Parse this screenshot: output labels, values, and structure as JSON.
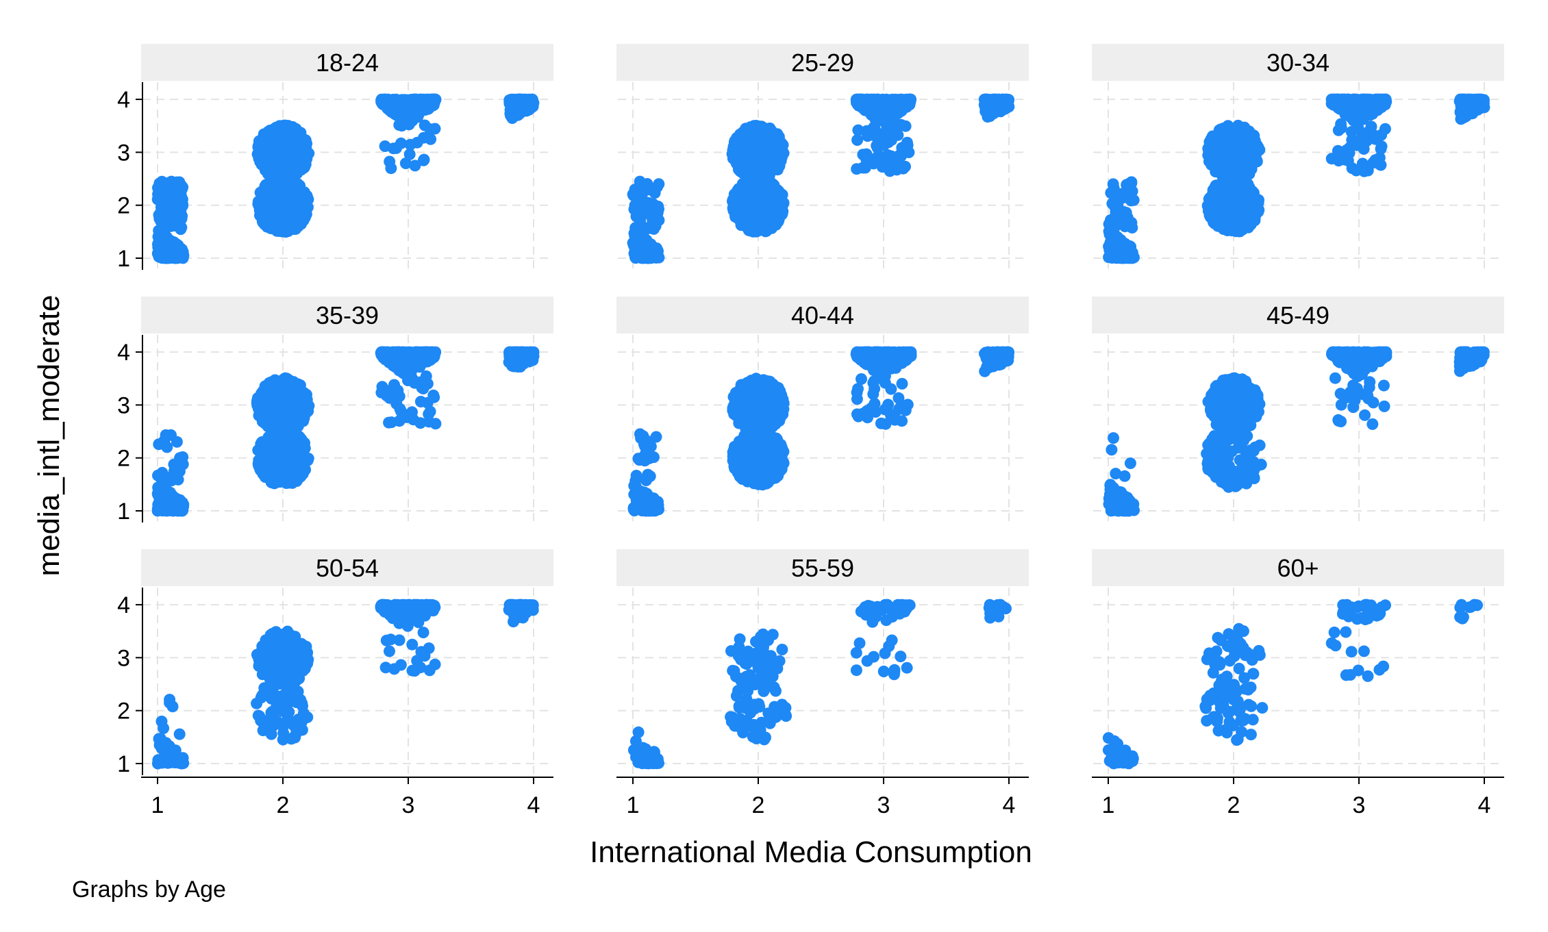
{
  "chart_data": {
    "type": "scatter",
    "jittered": true,
    "xlabel": "International Media Consumption",
    "ylabel": "media_intl_moderate",
    "note": "Graphs by Age",
    "xlim": [
      1,
      4
    ],
    "ylim": [
      1,
      4
    ],
    "xticks": [
      "1",
      "2",
      "3",
      "4"
    ],
    "yticks": [
      "1",
      "2",
      "3",
      "4"
    ],
    "grid": true,
    "marker_color": "#1E88F5",
    "strip_color": "#EEEEEE",
    "grid_color": "#E3E3E3",
    "panels": [
      {
        "label": "18-24",
        "cells": [
          {
            "x": 1,
            "y": 1,
            "n": 180
          },
          {
            "x": 1,
            "y": 2,
            "n": 110
          },
          {
            "x": 2,
            "y": 2,
            "n": 400
          },
          {
            "x": 2,
            "y": 3,
            "n": 420
          },
          {
            "x": 3,
            "y": 3,
            "n": 20
          },
          {
            "x": 3,
            "y": 4,
            "n": 300
          },
          {
            "x": 4,
            "y": 4,
            "n": 120
          }
        ]
      },
      {
        "label": "25-29",
        "cells": [
          {
            "x": 1,
            "y": 1,
            "n": 140
          },
          {
            "x": 1,
            "y": 2,
            "n": 60
          },
          {
            "x": 2,
            "y": 2,
            "n": 400
          },
          {
            "x": 2,
            "y": 3,
            "n": 420
          },
          {
            "x": 3,
            "y": 3,
            "n": 60
          },
          {
            "x": 3,
            "y": 4,
            "n": 300
          },
          {
            "x": 4,
            "y": 4,
            "n": 120
          }
        ]
      },
      {
        "label": "30-34",
        "cells": [
          {
            "x": 1,
            "y": 1,
            "n": 120
          },
          {
            "x": 1,
            "y": 2,
            "n": 40
          },
          {
            "x": 2,
            "y": 2,
            "n": 400
          },
          {
            "x": 2,
            "y": 3,
            "n": 420
          },
          {
            "x": 3,
            "y": 3,
            "n": 50
          },
          {
            "x": 3,
            "y": 4,
            "n": 300
          },
          {
            "x": 4,
            "y": 4,
            "n": 110
          }
        ]
      },
      {
        "label": "35-39",
        "cells": [
          {
            "x": 1,
            "y": 1,
            "n": 120
          },
          {
            "x": 1,
            "y": 2,
            "n": 22
          },
          {
            "x": 2,
            "y": 2,
            "n": 340
          },
          {
            "x": 2,
            "y": 3,
            "n": 400
          },
          {
            "x": 3,
            "y": 3,
            "n": 40
          },
          {
            "x": 3,
            "y": 4,
            "n": 300
          },
          {
            "x": 4,
            "y": 4,
            "n": 110
          }
        ]
      },
      {
        "label": "40-44",
        "cells": [
          {
            "x": 1,
            "y": 1,
            "n": 100
          },
          {
            "x": 1,
            "y": 2,
            "n": 22
          },
          {
            "x": 2,
            "y": 2,
            "n": 380
          },
          {
            "x": 2,
            "y": 3,
            "n": 400
          },
          {
            "x": 3,
            "y": 3,
            "n": 35
          },
          {
            "x": 3,
            "y": 4,
            "n": 300
          },
          {
            "x": 4,
            "y": 4,
            "n": 100
          }
        ]
      },
      {
        "label": "45-49",
        "cells": [
          {
            "x": 1,
            "y": 1,
            "n": 90
          },
          {
            "x": 1,
            "y": 2,
            "n": 5
          },
          {
            "x": 2,
            "y": 2,
            "n": 120
          },
          {
            "x": 2,
            "y": 3,
            "n": 280
          },
          {
            "x": 3,
            "y": 3,
            "n": 25
          },
          {
            "x": 3,
            "y": 4,
            "n": 260
          },
          {
            "x": 4,
            "y": 4,
            "n": 80
          }
        ]
      },
      {
        "label": "50-54",
        "cells": [
          {
            "x": 1,
            "y": 1,
            "n": 60
          },
          {
            "x": 1,
            "y": 2,
            "n": 6
          },
          {
            "x": 2,
            "y": 2,
            "n": 70
          },
          {
            "x": 2,
            "y": 3,
            "n": 280
          },
          {
            "x": 3,
            "y": 3,
            "n": 18
          },
          {
            "x": 3,
            "y": 4,
            "n": 150
          },
          {
            "x": 4,
            "y": 4,
            "n": 70
          }
        ]
      },
      {
        "label": "55-59",
        "cells": [
          {
            "x": 1,
            "y": 1,
            "n": 45
          },
          {
            "x": 1,
            "y": 2,
            "n": 1
          },
          {
            "x": 2,
            "y": 2,
            "n": 60
          },
          {
            "x": 2,
            "y": 3,
            "n": 55
          },
          {
            "x": 3,
            "y": 3,
            "n": 14
          },
          {
            "x": 3,
            "y": 4,
            "n": 40
          },
          {
            "x": 4,
            "y": 4,
            "n": 15
          }
        ]
      },
      {
        "label": "60+",
        "cells": [
          {
            "x": 1,
            "y": 1,
            "n": 45
          },
          {
            "x": 1,
            "y": 2,
            "n": 0
          },
          {
            "x": 2,
            "y": 2,
            "n": 55
          },
          {
            "x": 2,
            "y": 3,
            "n": 45
          },
          {
            "x": 3,
            "y": 3,
            "n": 12
          },
          {
            "x": 3,
            "y": 4,
            "n": 30
          },
          {
            "x": 4,
            "y": 4,
            "n": 10
          }
        ]
      }
    ]
  }
}
